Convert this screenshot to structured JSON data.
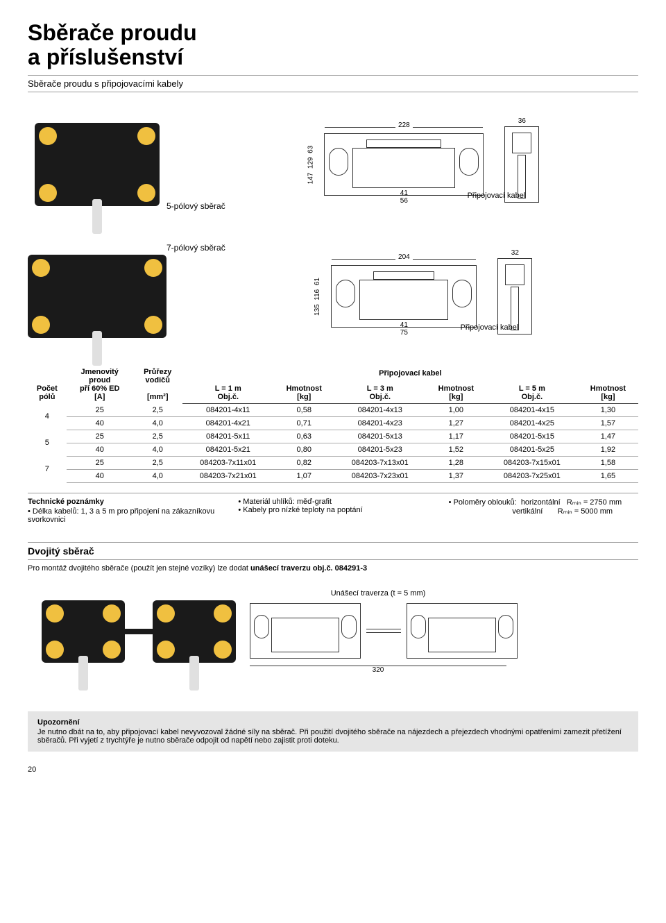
{
  "title_line1": "Sběrače proudu",
  "title_line2": "a příslušenství",
  "subtitle": "Sběrače proudu s připojovacími kabely",
  "collector5_label": "5-pólový sběrač",
  "collector7_label": "7-pólový sběrač",
  "cable_label": "Připojovací kabel",
  "drawing5": {
    "width_top": "228",
    "side_width": "36",
    "height_outer": "147",
    "height_inner": "129",
    "height_top": "63",
    "inner_w1": "41",
    "inner_w2": "56"
  },
  "drawing7": {
    "width_top": "204",
    "side_width": "32",
    "height_outer": "135",
    "height_inner": "116",
    "height_top": "61",
    "inner_w1": "41",
    "inner_w2": "75"
  },
  "table": {
    "headers": {
      "poles": "Počet\npólů",
      "current": "Jmenovitý\nproud\npří 60% ED\n[A]",
      "cross": "Průřezy\nvodičů\n\n[mm²]",
      "cable_header": "Připojovací kabel",
      "l1": "L = 1 m",
      "l3": "L = 3 m",
      "l5": "L = 5 m",
      "obj": "Obj.č.",
      "weight": "Hmotnost\n[kg]"
    },
    "rows": [
      {
        "poles": "4",
        "cur": "25",
        "cs": "2,5",
        "o1": "084201-4x11",
        "w1": "0,58",
        "o3": "084201-4x13",
        "w3": "1,00",
        "o5": "084201-4x15",
        "w5": "1,30"
      },
      {
        "poles": "",
        "cur": "40",
        "cs": "4,0",
        "o1": "084201-4x21",
        "w1": "0,71",
        "o3": "084201-4x23",
        "w3": "1,27",
        "o5": "084201-4x25",
        "w5": "1,57"
      },
      {
        "poles": "5",
        "cur": "25",
        "cs": "2,5",
        "o1": "084201-5x11",
        "w1": "0,63",
        "o3": "084201-5x13",
        "w3": "1,17",
        "o5": "084201-5x15",
        "w5": "1,47"
      },
      {
        "poles": "",
        "cur": "40",
        "cs": "4,0",
        "o1": "084201-5x21",
        "w1": "0,80",
        "o3": "084201-5x23",
        "w3": "1,52",
        "o5": "084201-5x25",
        "w5": "1,92"
      },
      {
        "poles": "7",
        "cur": "25",
        "cs": "2,5",
        "o1": "084203-7x11x01",
        "w1": "0,82",
        "o3": "084203-7x13x01",
        "w3": "1,28",
        "o5": "084203-7x15x01",
        "w5": "1,58"
      },
      {
        "poles": "",
        "cur": "40",
        "cs": "4,0",
        "o1": "084203-7x21x01",
        "w1": "1,07",
        "o3": "084203-7x23x01",
        "w3": "1,37",
        "o5": "084203-7x25x01",
        "w5": "1,65"
      }
    ]
  },
  "notes": {
    "title": "Technické poznámky",
    "col1": "Délka kabelů: 1, 3 a 5 m pro připojení na zákazníkovu svorkovnici",
    "col2a": "Materiál uhlíků: měď-grafit",
    "col2b": "Kabely pro nízké teploty na poptání",
    "col3_label": "Poloměry oblouků:",
    "col3_h": "horizontální",
    "col3_v": "vertikální",
    "rmin_h": "Rₘᵢₙ = 2750 mm",
    "rmin_v": "Rₘᵢₙ = 5000 mm"
  },
  "double": {
    "heading": "Dvojitý sběrač",
    "desc_a": "Pro montáž dvojitého sběrače (použít jen stejné vozíky) lze dodat ",
    "desc_b": "unášecí traverzu obj.č. 084291-3",
    "traverse_label": "Unášecí traverza (t = 5 mm)",
    "dim_bottom": "320"
  },
  "warning": {
    "title": "Upozornění",
    "text": "Je nutno dbát na to, aby připojovací kabel nevyvozoval žádné síly na sběrač. Při použití dvojitého sběrače na nájezdech a přejezdech vhodnými opatřeními zamezit přetížení sběračů. Při vyjetí z trychtýře je nutno sběrače odpojit od napětí nebo zajistit proti doteku."
  },
  "page_number": "20",
  "colors": {
    "text": "#000000",
    "rule": "#999999",
    "wheel": "#f0c040",
    "body": "#1a1a1a",
    "warning_bg": "#e5e5e5"
  }
}
